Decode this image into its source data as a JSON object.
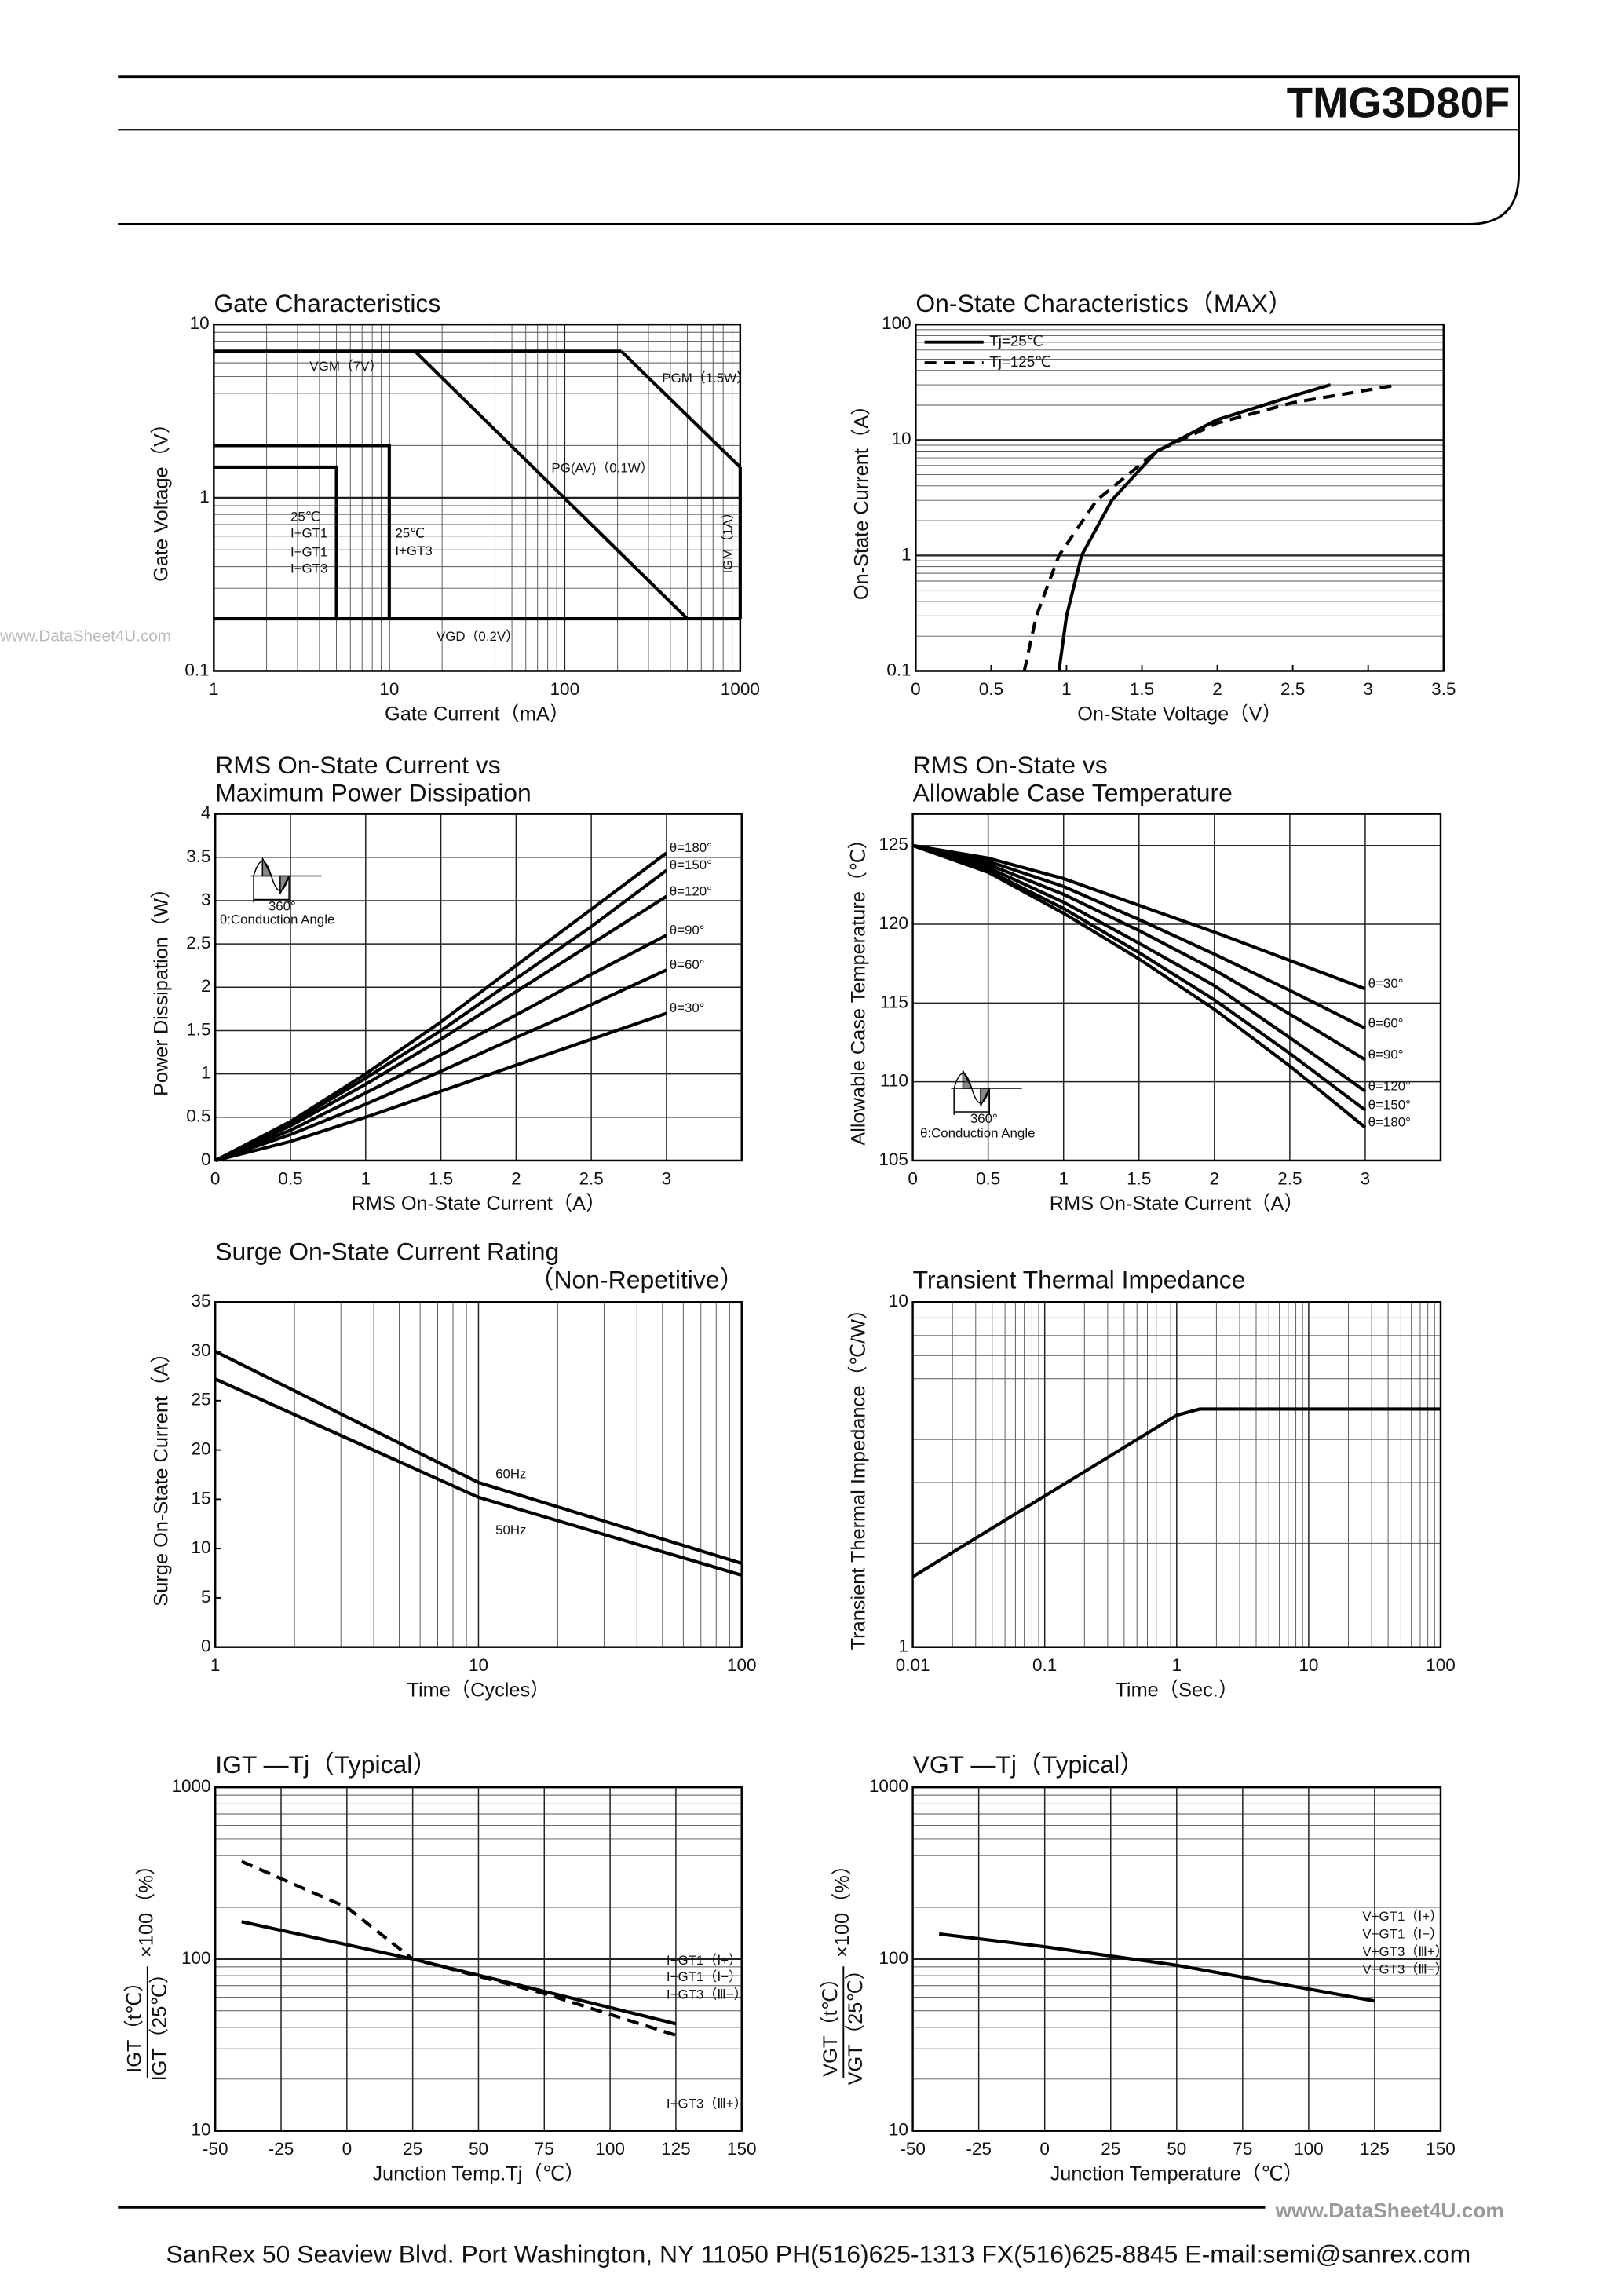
{
  "header": {
    "part_number": "TMG3D80F"
  },
  "watermarks": [
    "www.DataSheet4U.com",
    "www.DataSheet4U.com"
  ],
  "chart_data": [
    {
      "type": "line",
      "title": [
        "Gate Characteristics"
      ],
      "xlabel": "Gate Current（mA）",
      "ylabel": "Gate Voltage（V）",
      "xscale": "log",
      "yscale": "log",
      "xlim": [
        1,
        1000
      ],
      "ylim": [
        0.1,
        10
      ],
      "xticks": [
        1,
        10,
        100,
        1000
      ],
      "yticks": [
        0.1,
        1,
        10
      ],
      "xgrid": true,
      "ygrid": true,
      "series": [
        {
          "color": "#000000",
          "dash": false,
          "x": [
            1,
            210
          ],
          "values": [
            7,
            7
          ]
        },
        {
          "color": "#000000",
          "dash": false,
          "x": [
            210,
            1000
          ],
          "values": [
            7,
            1.5
          ]
        },
        {
          "color": "#000000",
          "dash": false,
          "x": [
            14,
            500
          ],
          "values": [
            7,
            0.2
          ]
        },
        {
          "color": "#000000",
          "dash": false,
          "x": [
            1,
            1000
          ],
          "values": [
            0.2,
            0.2
          ]
        },
        {
          "color": "#000000",
          "dash": false,
          "x": [
            1000,
            1000
          ],
          "values": [
            0.2,
            1.5
          ]
        },
        {
          "color": "#000000",
          "dash": false,
          "x": [
            1,
            10,
            10
          ],
          "values": [
            2,
            2,
            0.2
          ]
        },
        {
          "color": "#000000",
          "dash": false,
          "x": [
            1,
            5,
            5
          ],
          "values": [
            1.5,
            1.5,
            0.2
          ]
        }
      ],
      "annotations": [
        "VGM（7V）",
        "PGM（1.5W）",
        "PG(AV)（0.1W）",
        "VGD（0.2V）",
        "IGM（1A）",
        "25℃",
        "I+GT1",
        "I−GT1",
        "I−GT3",
        "25℃",
        "I+GT3"
      ]
    },
    {
      "type": "line",
      "title": [
        "On-State Characteristics（MAX）"
      ],
      "xlabel": "On-State Voltage（V）",
      "ylabel": "On-State Current（A）",
      "xscale": "linear",
      "yscale": "log",
      "xlim": [
        0,
        3.5
      ],
      "ylim": [
        0.1,
        100
      ],
      "xticks": [
        0,
        0.5,
        1,
        1.5,
        2,
        2.5,
        3,
        3.5
      ],
      "yticks": [
        0.1,
        1,
        10,
        100
      ],
      "xgrid": false,
      "ygrid": true,
      "legend": "upper left",
      "series": [
        {
          "name": "Tj=25℃",
          "color": "#000000",
          "dash": false,
          "x": [
            0.95,
            1.0,
            1.1,
            1.3,
            1.6,
            2.0,
            2.5,
            2.75
          ],
          "values": [
            0.1,
            0.3,
            1,
            3,
            8,
            15,
            24,
            30
          ]
        },
        {
          "name": "Tj=125℃",
          "color": "#000000",
          "dash": true,
          "x": [
            0.72,
            0.8,
            0.95,
            1.2,
            1.6,
            2.0,
            2.5,
            3.2
          ],
          "values": [
            0.1,
            0.3,
            1,
            3,
            8,
            14,
            21,
            30
          ]
        }
      ],
      "annotations": []
    },
    {
      "type": "line",
      "title": [
        "RMS On-State Current vs",
        "Maximum Power Dissipation"
      ],
      "xlabel": "RMS On-State Current（A）",
      "ylabel": "Power Dissipation（W）",
      "xscale": "linear",
      "yscale": "linear",
      "xlim": [
        0,
        3.5
      ],
      "ylim": [
        0,
        4
      ],
      "xticks": [
        0,
        0.5,
        1,
        1.5,
        2,
        2.5,
        3
      ],
      "yticks": [
        0,
        0.5,
        1,
        1.5,
        2,
        2.5,
        3,
        3.5,
        4
      ],
      "xgrid": true,
      "ygrid": true,
      "series": [
        {
          "name": "θ=180°",
          "color": "#000000",
          "dash": false,
          "x": [
            0,
            0.5,
            1,
            1.5,
            2,
            2.5,
            3
          ],
          "values": [
            0,
            0.45,
            1.0,
            1.6,
            2.25,
            2.9,
            3.55
          ]
        },
        {
          "name": "θ=150°",
          "color": "#000000",
          "dash": false,
          "x": [
            0,
            0.5,
            1,
            1.5,
            2,
            2.5,
            3
          ],
          "values": [
            0,
            0.43,
            0.95,
            1.5,
            2.1,
            2.7,
            3.35
          ]
        },
        {
          "name": "θ=120°",
          "color": "#000000",
          "dash": false,
          "x": [
            0,
            0.5,
            1,
            1.5,
            2,
            2.5,
            3
          ],
          "values": [
            0,
            0.4,
            0.88,
            1.4,
            1.95,
            2.5,
            3.05
          ]
        },
        {
          "name": "θ=90°",
          "color": "#000000",
          "dash": false,
          "x": [
            0,
            0.5,
            1,
            1.5,
            2,
            2.5,
            3
          ],
          "values": [
            0,
            0.35,
            0.78,
            1.22,
            1.68,
            2.15,
            2.6
          ]
        },
        {
          "name": "θ=60°",
          "color": "#000000",
          "dash": false,
          "x": [
            0,
            0.5,
            1,
            1.5,
            2,
            2.5,
            3
          ],
          "values": [
            0,
            0.3,
            0.65,
            1.03,
            1.42,
            1.8,
            2.2
          ]
        },
        {
          "name": "θ=30°",
          "color": "#000000",
          "dash": false,
          "x": [
            0,
            0.5,
            1,
            1.5,
            2,
            2.5,
            3
          ],
          "values": [
            0,
            0.22,
            0.5,
            0.8,
            1.1,
            1.4,
            1.7
          ]
        }
      ],
      "annotations": [
        "θ:Conduction Angle",
        "360°"
      ]
    },
    {
      "type": "line",
      "title": [
        "RMS On-State vs",
        "Allowable Case Temperature"
      ],
      "xlabel": "RMS On-State Current（A）",
      "ylabel": "Allowable Case Temperature（℃）",
      "xscale": "linear",
      "yscale": "linear",
      "xlim": [
        0,
        3.5
      ],
      "ylim": [
        105,
        127
      ],
      "xticks": [
        0,
        0.5,
        1,
        1.5,
        2,
        2.5,
        3
      ],
      "yticks": [
        105,
        110,
        115,
        120,
        125
      ],
      "xgrid": true,
      "ygrid": true,
      "series": [
        {
          "name": "θ=30°",
          "color": "#000000",
          "dash": false,
          "x": [
            0,
            0.5,
            1,
            1.5,
            2,
            2.5,
            3
          ],
          "values": [
            125,
            124.2,
            122.9,
            121.2,
            119.5,
            117.7,
            115.9
          ]
        },
        {
          "name": "θ=60°",
          "color": "#000000",
          "dash": false,
          "x": [
            0,
            0.5,
            1,
            1.5,
            2,
            2.5,
            3
          ],
          "values": [
            125,
            124,
            122.4,
            120.3,
            118.1,
            115.8,
            113.4
          ]
        },
        {
          "name": "θ=90°",
          "color": "#000000",
          "dash": false,
          "x": [
            0,
            0.5,
            1,
            1.5,
            2,
            2.5,
            3
          ],
          "values": [
            125,
            123.8,
            121.9,
            119.6,
            117.1,
            114.3,
            111.4
          ]
        },
        {
          "name": "θ=120°",
          "color": "#000000",
          "dash": false,
          "x": [
            0,
            0.5,
            1,
            1.5,
            2,
            2.5,
            3
          ],
          "values": [
            125,
            123.6,
            121.4,
            118.8,
            116.1,
            112.8,
            109.4
          ]
        },
        {
          "name": "θ=150°",
          "color": "#000000",
          "dash": false,
          "x": [
            0,
            0.5,
            1,
            1.5,
            2,
            2.5,
            3
          ],
          "values": [
            125,
            123.4,
            121.0,
            118.2,
            115.2,
            111.8,
            108.2
          ]
        },
        {
          "name": "θ=180°",
          "color": "#000000",
          "dash": false,
          "x": [
            0,
            0.5,
            1,
            1.5,
            2,
            2.5,
            3
          ],
          "values": [
            125,
            123.3,
            120.7,
            117.8,
            114.6,
            111,
            107.1
          ]
        }
      ],
      "annotations": [
        "θ:Conduction Angle",
        "360°"
      ]
    },
    {
      "type": "line",
      "title": [
        "Surge On-State Current Rating",
        "（Non-Repetitive）"
      ],
      "xlabel": "Time（Cycles）",
      "ylabel": "Surge On-State Current（A）",
      "xscale": "log",
      "yscale": "linear",
      "xlim": [
        1,
        100
      ],
      "ylim": [
        0,
        35
      ],
      "xticks": [
        1,
        10,
        100
      ],
      "yticks": [
        0,
        5,
        10,
        15,
        20,
        25,
        30,
        35
      ],
      "xgrid": true,
      "ygrid": false,
      "series": [
        {
          "color": "#000000",
          "dash": false,
          "x": [
            1,
            10,
            100
          ],
          "values": [
            30,
            16.7,
            8.5
          ]
        },
        {
          "color": "#000000",
          "dash": false,
          "x": [
            1,
            10,
            100
          ],
          "values": [
            27.2,
            15.2,
            7.3
          ]
        }
      ],
      "annotations": [
        "60Hz",
        "50Hz"
      ]
    },
    {
      "type": "line",
      "title": [
        "Transient Thermal Impedance"
      ],
      "xlabel": "Time（Sec.）",
      "ylabel": "Transient Thermal Impedance（℃/W）",
      "xscale": "log",
      "yscale": "log",
      "xlim": [
        0.01,
        100
      ],
      "ylim": [
        1,
        10
      ],
      "xticks": [
        0.01,
        0.1,
        1,
        10,
        100
      ],
      "yticks": [
        1,
        10
      ],
      "xgrid": true,
      "ygrid": true,
      "series": [
        {
          "color": "#000000",
          "dash": false,
          "x": [
            0.01,
            1,
            1.5,
            100
          ],
          "values": [
            1.6,
            4.7,
            4.9,
            4.9
          ]
        }
      ],
      "annotations": []
    },
    {
      "type": "line",
      "title": [
        "IGT —Tj（Typical）"
      ],
      "xlabel": "Junction Temp.Tj（℃）",
      "ylabel": [
        "IGT（t℃）",
        "IGT（25℃）",
        "×100（%）"
      ],
      "xscale": "linear",
      "yscale": "log",
      "xlim": [
        -50,
        150
      ],
      "ylim": [
        10,
        1000
      ],
      "xticks": [
        -50,
        -25,
        0,
        25,
        50,
        75,
        100,
        125,
        150
      ],
      "yticks": [
        10,
        100,
        1000
      ],
      "xgrid": true,
      "ygrid": true,
      "series": [
        {
          "color": "#000000",
          "dash": false,
          "x": [
            -40,
            25,
            125
          ],
          "values": [
            165,
            100,
            42
          ]
        },
        {
          "color": "#000000",
          "dash": true,
          "x": [
            -40,
            0,
            25,
            75,
            125
          ],
          "values": [
            370,
            200,
            100,
            63,
            36
          ]
        }
      ],
      "annotations": [
        "I+GT1（Ⅰ+）",
        "I−GT1（Ⅰ−）",
        "I−GT3（Ⅲ−）",
        "I+GT3（Ⅲ+）"
      ]
    },
    {
      "type": "line",
      "title": [
        "VGT —Tj（Typical）"
      ],
      "xlabel": "Junction Temperature（℃）",
      "ylabel": [
        "VGT（t℃）",
        "VGT（25℃）",
        "×100（%）"
      ],
      "xscale": "linear",
      "yscale": "log",
      "xlim": [
        -50,
        150
      ],
      "ylim": [
        10,
        1000
      ],
      "xticks": [
        -50,
        -25,
        0,
        25,
        50,
        75,
        100,
        125,
        150
      ],
      "yticks": [
        10,
        100,
        1000
      ],
      "xgrid": true,
      "ygrid": true,
      "series": [
        {
          "color": "#000000",
          "dash": false,
          "x": [
            -40,
            0,
            50,
            125
          ],
          "values": [
            140,
            118,
            92,
            57
          ]
        }
      ],
      "annotations": [
        "V+GT1（Ⅰ+）",
        "V−GT1（Ⅰ−）",
        "V+GT3（Ⅲ+）",
        "V−GT3（Ⅲ−）"
      ]
    }
  ],
  "footer": {
    "text": "SanRex 50 Seaview Blvd. Port Washington, NY 11050 PH(516)625-1313 FX(516)625-8845 E-mail:semi@sanrex.com"
  }
}
